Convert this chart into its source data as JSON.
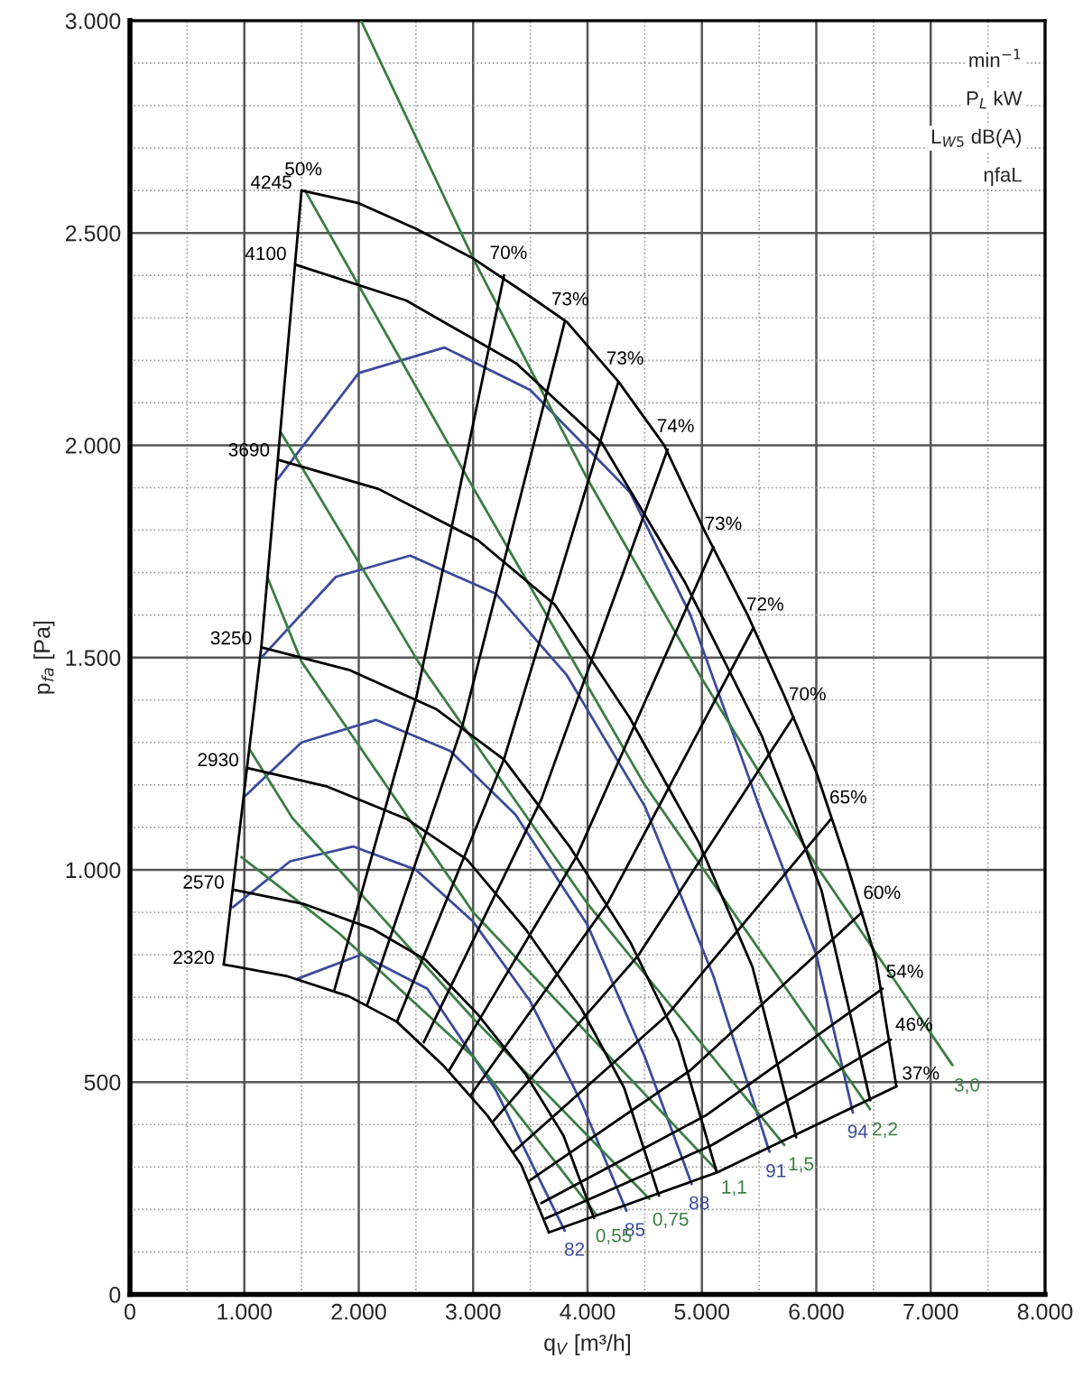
{
  "chart_data": {
    "type": "line",
    "xlabel": "q$_{V}$ [m³/h]",
    "ylabel": "p$_{fa}$ [Pa]",
    "xlim": [
      0,
      8000
    ],
    "ylim": [
      0,
      3000
    ],
    "xticks": [
      0,
      {
        "value": 500,
        "label": null
      },
      {
        "value": 1000,
        "label": "1.000"
      },
      {
        "value": 1500,
        "label": null
      },
      {
        "value": 2000,
        "label": "2.000"
      },
      {
        "value": 2500,
        "label": null
      },
      {
        "value": 3000,
        "label": "3.000"
      },
      {
        "value": 3500,
        "label": null
      },
      {
        "value": 4000,
        "label": "4.000"
      },
      {
        "value": 4500,
        "label": null
      },
      {
        "value": 5000,
        "label": "5.000"
      },
      {
        "value": 5500,
        "label": null
      },
      {
        "value": 6000,
        "label": "6.000"
      },
      {
        "value": 6500,
        "label": null
      },
      {
        "value": 7000,
        "label": "7.000"
      },
      {
        "value": 7500,
        "label": null
      },
      {
        "value": 8000,
        "label": "8.000"
      }
    ],
    "yticks": [
      0,
      {
        "value": 100,
        "label": null
      },
      {
        "value": 200,
        "label": null
      },
      {
        "value": 300,
        "label": null
      },
      {
        "value": 400,
        "label": null
      },
      500,
      {
        "value": 600,
        "label": null
      },
      {
        "value": 700,
        "label": null
      },
      {
        "value": 800,
        "label": null
      },
      {
        "value": 900,
        "label": null
      },
      {
        "value": 1000,
        "label": "1.000"
      },
      {
        "value": 1100,
        "label": null
      },
      {
        "value": 1200,
        "label": null
      },
      {
        "value": 1300,
        "label": null
      },
      {
        "value": 1400,
        "label": null
      },
      {
        "value": 1500,
        "label": "1.500"
      },
      {
        "value": 1600,
        "label": null
      },
      {
        "value": 1700,
        "label": null
      },
      {
        "value": 1800,
        "label": null
      },
      {
        "value": 1900,
        "label": null
      },
      {
        "value": 2000,
        "label": "2.000"
      },
      {
        "value": 2100,
        "label": null
      },
      {
        "value": 2200,
        "label": null
      },
      {
        "value": 2300,
        "label": null
      },
      {
        "value": 2400,
        "label": null
      },
      {
        "value": 2500,
        "label": "2.500"
      },
      {
        "value": 2600,
        "label": null
      },
      {
        "value": 2700,
        "label": null
      },
      {
        "value": 2800,
        "label": null
      },
      {
        "value": 2900,
        "label": null
      },
      {
        "value": 3000,
        "label": "3.000"
      }
    ],
    "grid": true,
    "line_style": "solid",
    "series": [
      {
        "name": "94",
        "color": "#3b4a9c",
        "x": [
          6320,
          6000,
          5500,
          4900,
          4370,
          3500,
          2750,
          2000,
          1290
        ],
        "values": [
          428,
          800,
          1150,
          1600,
          1890,
          2130,
          2230,
          2170,
          1920
        ]
      },
      {
        "name": "91",
        "color": "#3b4a9c",
        "x": [
          5590,
          5100,
          4500,
          3820,
          3200,
          2450,
          1800,
          1150
        ],
        "values": [
          336,
          750,
          1150,
          1458,
          1650,
          1740,
          1690,
          1500
        ]
      },
      {
        "name": "88",
        "color": "#3b4a9c",
        "x": [
          4910,
          4500,
          4000,
          3370,
          2800,
          2150,
          1500,
          1000
        ],
        "values": [
          260,
          560,
          870,
          1130,
          1280,
          1353,
          1300,
          1172
        ]
      },
      {
        "name": "85",
        "color": "#3b4a9c",
        "x": [
          4340,
          3950,
          3500,
          3000,
          2500,
          1950,
          1400,
          900
        ],
        "values": [
          197,
          450,
          690,
          878,
          1000,
          1055,
          1020,
          912
        ]
      },
      {
        "name": "82",
        "color": "#3b4a9c",
        "x": [
          3800,
          3200,
          2600,
          2020,
          1470
        ],
        "values": [
          150,
          480,
          720,
          800,
          744
        ]
      },
      {
        "name": "3,0",
        "color": "#3a7d44",
        "x": [
          7190,
          6000,
          5000,
          4000,
          3000,
          2020
        ],
        "values": [
          540,
          1010,
          1450,
          1920,
          2440,
          3000
        ]
      },
      {
        "name": "2,2",
        "color": "#3a7d44",
        "x": [
          6470,
          4500,
          3000,
          1530
        ],
        "values": [
          436,
          1200,
          1900,
          2600
        ]
      },
      {
        "name": "1,5",
        "color": "#3a7d44",
        "x": [
          5720,
          4000,
          2520,
          1320
        ],
        "values": [
          352,
          920,
          1490,
          2030
        ]
      },
      {
        "name": "1,1",
        "color": "#3a7d44",
        "x": [
          5120,
          3000,
          1500,
          1200
        ],
        "values": [
          295,
          900,
          1490,
          1690
        ]
      },
      {
        "name": "0,75",
        "color": "#3a7d44",
        "x": [
          4540,
          3000,
          1420,
          1050
        ],
        "values": [
          225,
          650,
          1122,
          1282
        ]
      },
      {
        "name": "0,55",
        "color": "#3a7d44",
        "x": [
          4070,
          3000,
          1830,
          975
        ],
        "values": [
          190,
          560,
          850,
          1030
        ]
      },
      {
        "name": "50%",
        "color": "#000000",
        "x": [
          1500,
          1148,
          820
        ],
        "values": [
          2600,
          1524,
          777
        ]
      },
      {
        "name": "70%",
        "color": "#000000",
        "x": [
          3270,
          2504,
          1787
        ],
        "values": [
          2400,
          1407,
          717
        ]
      },
      {
        "name": "73%",
        "color": "#000000",
        "x": [
          3800,
          2909,
          2077
        ],
        "values": [
          2290,
          1342,
          684
        ]
      },
      {
        "name": "73%",
        "color": "#000000",
        "x": [
          4270,
          3269,
          2334
        ],
        "values": [
          2150,
          1260,
          642
        ]
      },
      {
        "name": "74%",
        "color": "#000000",
        "x": [
          4700,
          3598,
          2569
        ],
        "values": [
          1990,
          1167,
          594
        ]
      },
      {
        "name": "73%",
        "color": "#000000",
        "x": [
          5100,
          3905,
          2787
        ],
        "values": [
          1760,
          1032,
          526
        ]
      },
      {
        "name": "72%",
        "color": "#000000",
        "x": [
          5450,
          4173,
          2978
        ],
        "values": [
          1570,
          920,
          469
        ]
      },
      {
        "name": "70%",
        "color": "#000000",
        "x": [
          5800,
          4440,
          3170
        ],
        "values": [
          1360,
          797,
          406
        ]
      },
      {
        "name": "65%",
        "color": "#000000",
        "x": [
          6130,
          4693,
          3350
        ],
        "values": [
          1120,
          657,
          335
        ]
      },
      {
        "name": "60%",
        "color": "#000000",
        "x": [
          6400,
          4900,
          3498
        ],
        "values": [
          900,
          528,
          269
        ]
      },
      {
        "name": "54%",
        "color": "#000000",
        "x": [
          6580,
          5038,
          3596
        ],
        "values": [
          720,
          422,
          215
        ]
      },
      {
        "name": "46%",
        "color": "#000000",
        "x": [
          6650,
          5091,
          3634
        ],
        "values": [
          600,
          352,
          179
        ]
      },
      {
        "name": "37%",
        "color": "#000000",
        "x": [
          6700,
          5130,
          3662
        ],
        "values": [
          490,
          287,
          146
        ]
      },
      {
        "name": "4245",
        "color": "#000000",
        "x": [
          1500,
          2000,
          2500,
          3000,
          3500,
          3820,
          4270,
          4670,
          5020,
          5400,
          5720,
          6000,
          6260,
          6520,
          6700
        ],
        "values": [
          2600,
          2570,
          2510,
          2440,
          2350,
          2290,
          2150,
          2000,
          1800,
          1600,
          1410,
          1230,
          1020,
          790,
          490
        ]
      },
      {
        "name": "4100",
        "color": "#000000",
        "x": [
          1449,
          2415,
          3380,
          4124,
          4848,
          5524,
          6046,
          6471
        ],
        "values": [
          2425,
          2341,
          2192,
          2006,
          1679,
          1315,
          951,
          457
        ]
      },
      {
        "name": "3690",
        "color": "#000000",
        "x": [
          1304,
          2173,
          3043,
          3712,
          4364,
          4972,
          5442,
          5824
        ],
        "values": [
          1965,
          1897,
          1776,
          1625,
          1360,
          1065,
          771,
          370
        ]
      },
      {
        "name": "3250",
        "color": "#000000",
        "x": [
          1148,
          1914,
          2680,
          3269,
          3843,
          4379,
          4793,
          5130
        ],
        "values": [
          1524,
          1471,
          1378,
          1260,
          1055,
          827,
          598,
          287
        ]
      },
      {
        "name": "2930",
        "color": "#000000",
        "x": [
          1035,
          1725,
          2416,
          2947,
          3465,
          3948,
          4321,
          4624
        ],
        "values": [
          1239,
          1196,
          1120,
          1024,
          858,
          672,
          486,
          233
        ]
      },
      {
        "name": "2570",
        "color": "#000000",
        "x": [
          908,
          1514,
          2119,
          2585,
          3039,
          3463,
          3790,
          4056
        ],
        "values": [
          953,
          920,
          861,
          788,
          660,
          517,
          374,
          180
        ]
      },
      {
        "name": "2320",
        "color": "#000000",
        "x": [
          820,
          1366,
          1913,
          2334,
          2743,
          3126,
          3421,
          3662
        ],
        "values": [
          777,
          750,
          702,
          642,
          538,
          421,
          305,
          146
        ]
      }
    ],
    "annotations": [
      "min$^{−1}$",
      "P$_{L}$ kW",
      "L$_{W5}$ dB(A)",
      "ηfaL"
    ]
  }
}
